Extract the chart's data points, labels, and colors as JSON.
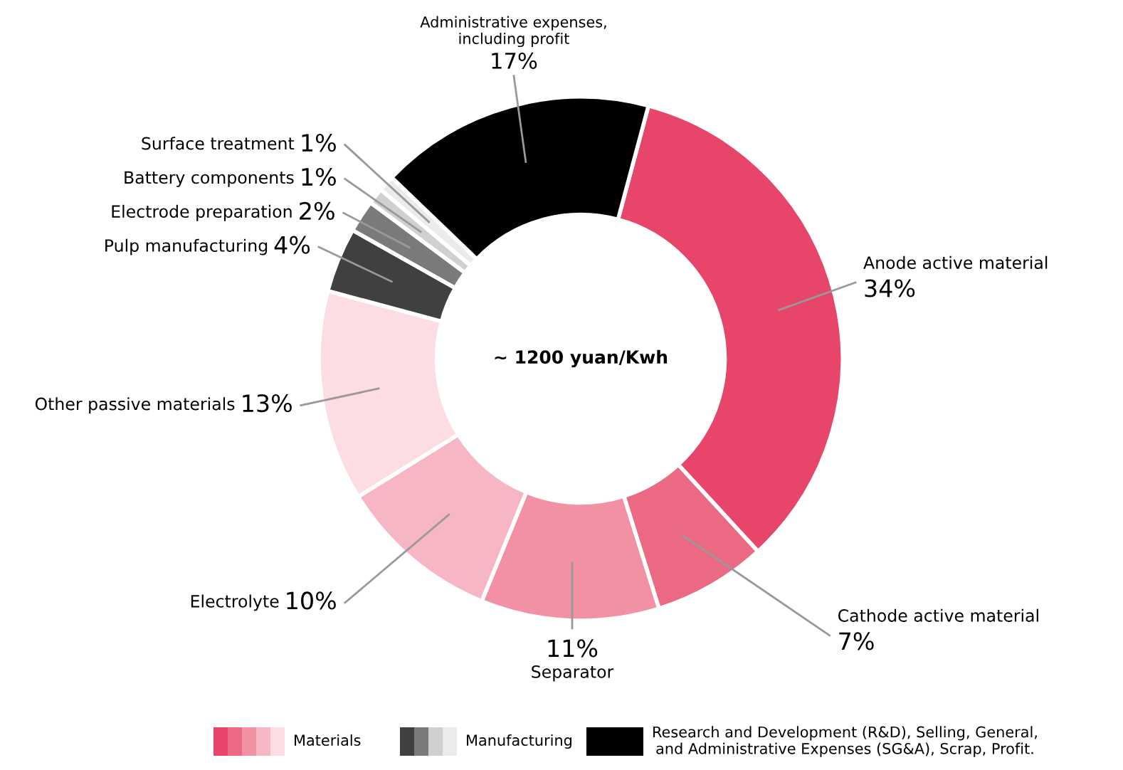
{
  "chart_data": {
    "type": "donut",
    "categories": [
      "Anode active material",
      "Cathode active material",
      "Separator",
      "Electrolyte",
      "Other passive materials",
      "Pulp manufacturing",
      "Electrode preparation",
      "Battery components",
      "Surface treatment",
      "Administrative expenses,\nincluding profit"
    ],
    "values": [
      34,
      7,
      11,
      10,
      13,
      4,
      2,
      1,
      1,
      17
    ],
    "value_labels": [
      "34%",
      "7%",
      "11%",
      "10%",
      "13%",
      "4%",
      "2%",
      "1%",
      "1%",
      "17%"
    ],
    "colors": [
      "#e8456a",
      "#ec6983",
      "#f291a4",
      "#f7b6c3",
      "#fbdde3",
      "#404040",
      "#7a7a7a",
      "#d0d0d0",
      "#ebebeb",
      "#000000"
    ],
    "annotations": [
      "~ 1200 yuan/Kwh",
      "Materials",
      "Manufacturing",
      "Research and Development (R&D), Selling, General,\nand Administrative Expenses (SG&A), Scrap, Profit."
    ]
  }
}
